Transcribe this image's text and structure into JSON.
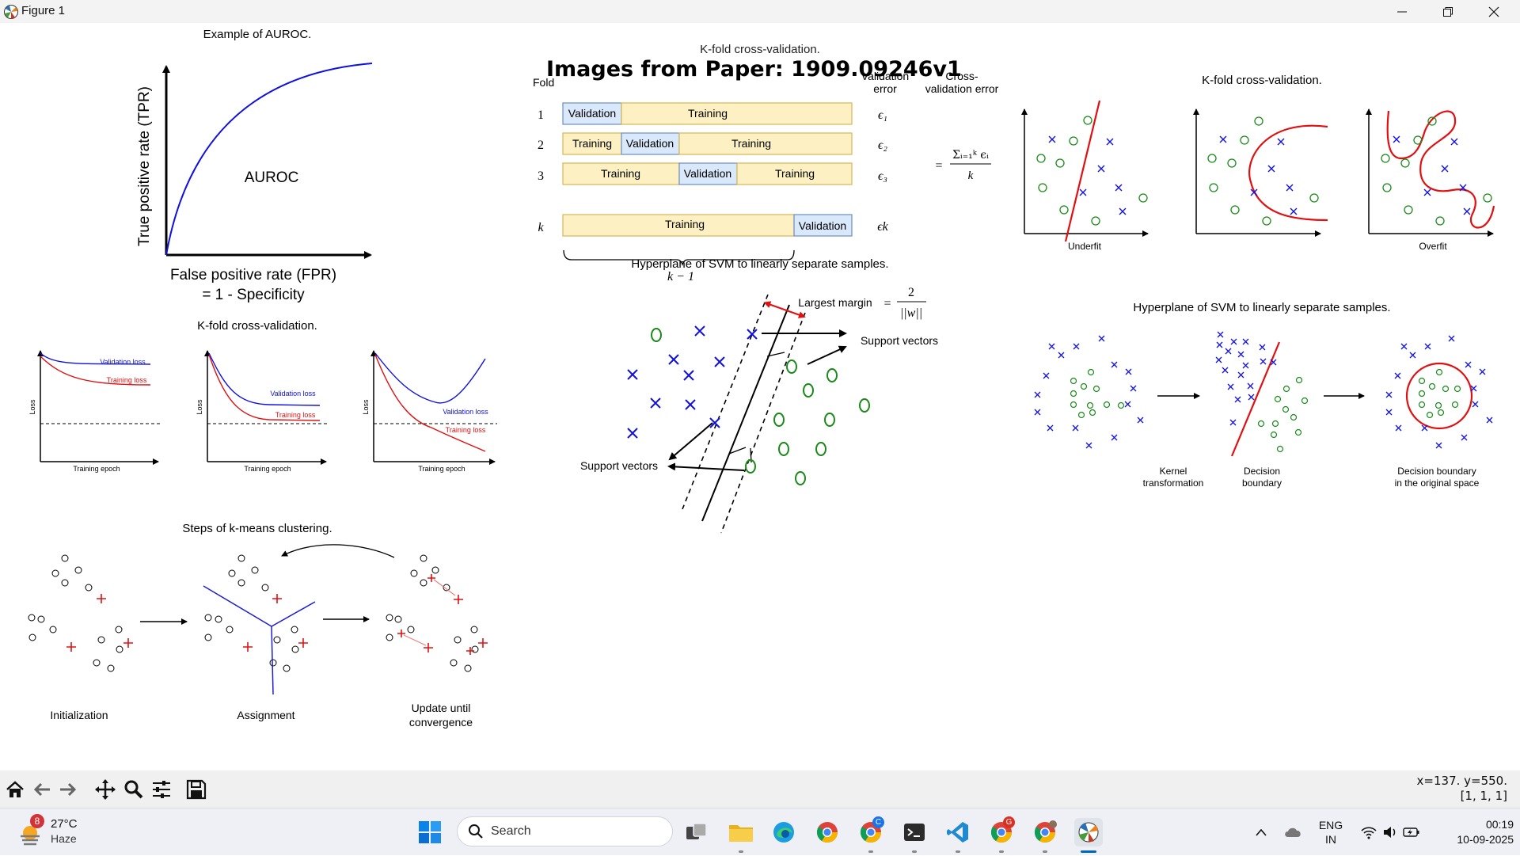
{
  "window": {
    "title": "Figure 1",
    "app_icon": "matplotlib-icon"
  },
  "suptitle": "Images from Paper: 1909.09246v1",
  "panels": {
    "auroc": {
      "title": "Example of AUROC.",
      "xlabel_line1": "False positive rate (FPR)",
      "xlabel_line2": "= 1 - Specificity",
      "ylabel": "True positive rate (TPR)",
      "area_label": "AUROC"
    },
    "kfold_loss": {
      "title": "K-fold cross-validation.",
      "xlabel": "Training epoch",
      "ylabel": "Loss",
      "validation_label": "Validation loss",
      "training_label": "Training loss",
      "colors": {
        "validation": "#1010e0",
        "training": "#e01010"
      }
    },
    "kfold_scheme": {
      "title_overlap": "K-fold cross-validation.",
      "fold_header": "Fold",
      "val_error_header_1": "Validation",
      "val_error_header_2": "error",
      "cv_error_header_1": "Cross-",
      "cv_error_header_2": "validation error",
      "training_label": "Training",
      "validation_label": "Validation",
      "rows": [
        {
          "fold": "1",
          "error": "ϵ₁"
        },
        {
          "fold": "2",
          "error": "ϵ₂"
        },
        {
          "fold": "3",
          "error": "ϵ₃"
        },
        {
          "fold": "k",
          "error": "ϵk"
        }
      ],
      "brace_label": "k − 1",
      "formula_eq": "=",
      "formula_num": "Σᵢ₌₁ᵏ ϵᵢ",
      "formula_den": "k",
      "colors": {
        "training": "#fdf1c4",
        "training_border": "#d6b656",
        "validation": "#dae8fc",
        "validation_border": "#6c8ebf"
      }
    },
    "fitting": {
      "title": "K-fold cross-validation.",
      "underfit_label": "Underfit",
      "overfit_label": "Overfit"
    },
    "svm": {
      "title": "Hyperplane of SVM to linearly separate samples.",
      "margin_label": "Largest margin",
      "margin_eq": "=",
      "margin_num": "2",
      "margin_den": "||w||",
      "support_vectors_right": "Support vectors",
      "support_vectors_left": "Support vectors"
    },
    "kernel": {
      "title": "Hyperplane of SVM to linearly separate samples.",
      "kernel_label_1": "Kernel",
      "kernel_label_2": "transformation",
      "boundary_label_1": "Decision",
      "boundary_label_2": "boundary",
      "original_label_1": "Decision boundary",
      "original_label_2": "in the original space"
    },
    "kmeans": {
      "title": "Steps of k-means clustering.",
      "init_label": "Initialization",
      "assign_label": "Assignment",
      "update_label_1": "Update until",
      "update_label_2": "convergence"
    }
  },
  "toolbar": {
    "tools": [
      "home-icon",
      "back-arrow-icon",
      "forward-arrow-icon",
      "pan-icon",
      "zoom-icon",
      "configure-subplots-icon",
      "save-icon"
    ],
    "coord_line1": "x=137. y=550.",
    "coord_line2": "[1, 1, 1]"
  },
  "taskbar": {
    "weather_badge": "8",
    "temperature": "27°C",
    "condition": "Haze",
    "search_placeholder": "Search",
    "lang_line1": "ENG",
    "lang_line2": "IN",
    "time": "00:19",
    "date": "10-09-2025",
    "chrome_badge_1": "C",
    "chrome_badge_2": "G"
  }
}
